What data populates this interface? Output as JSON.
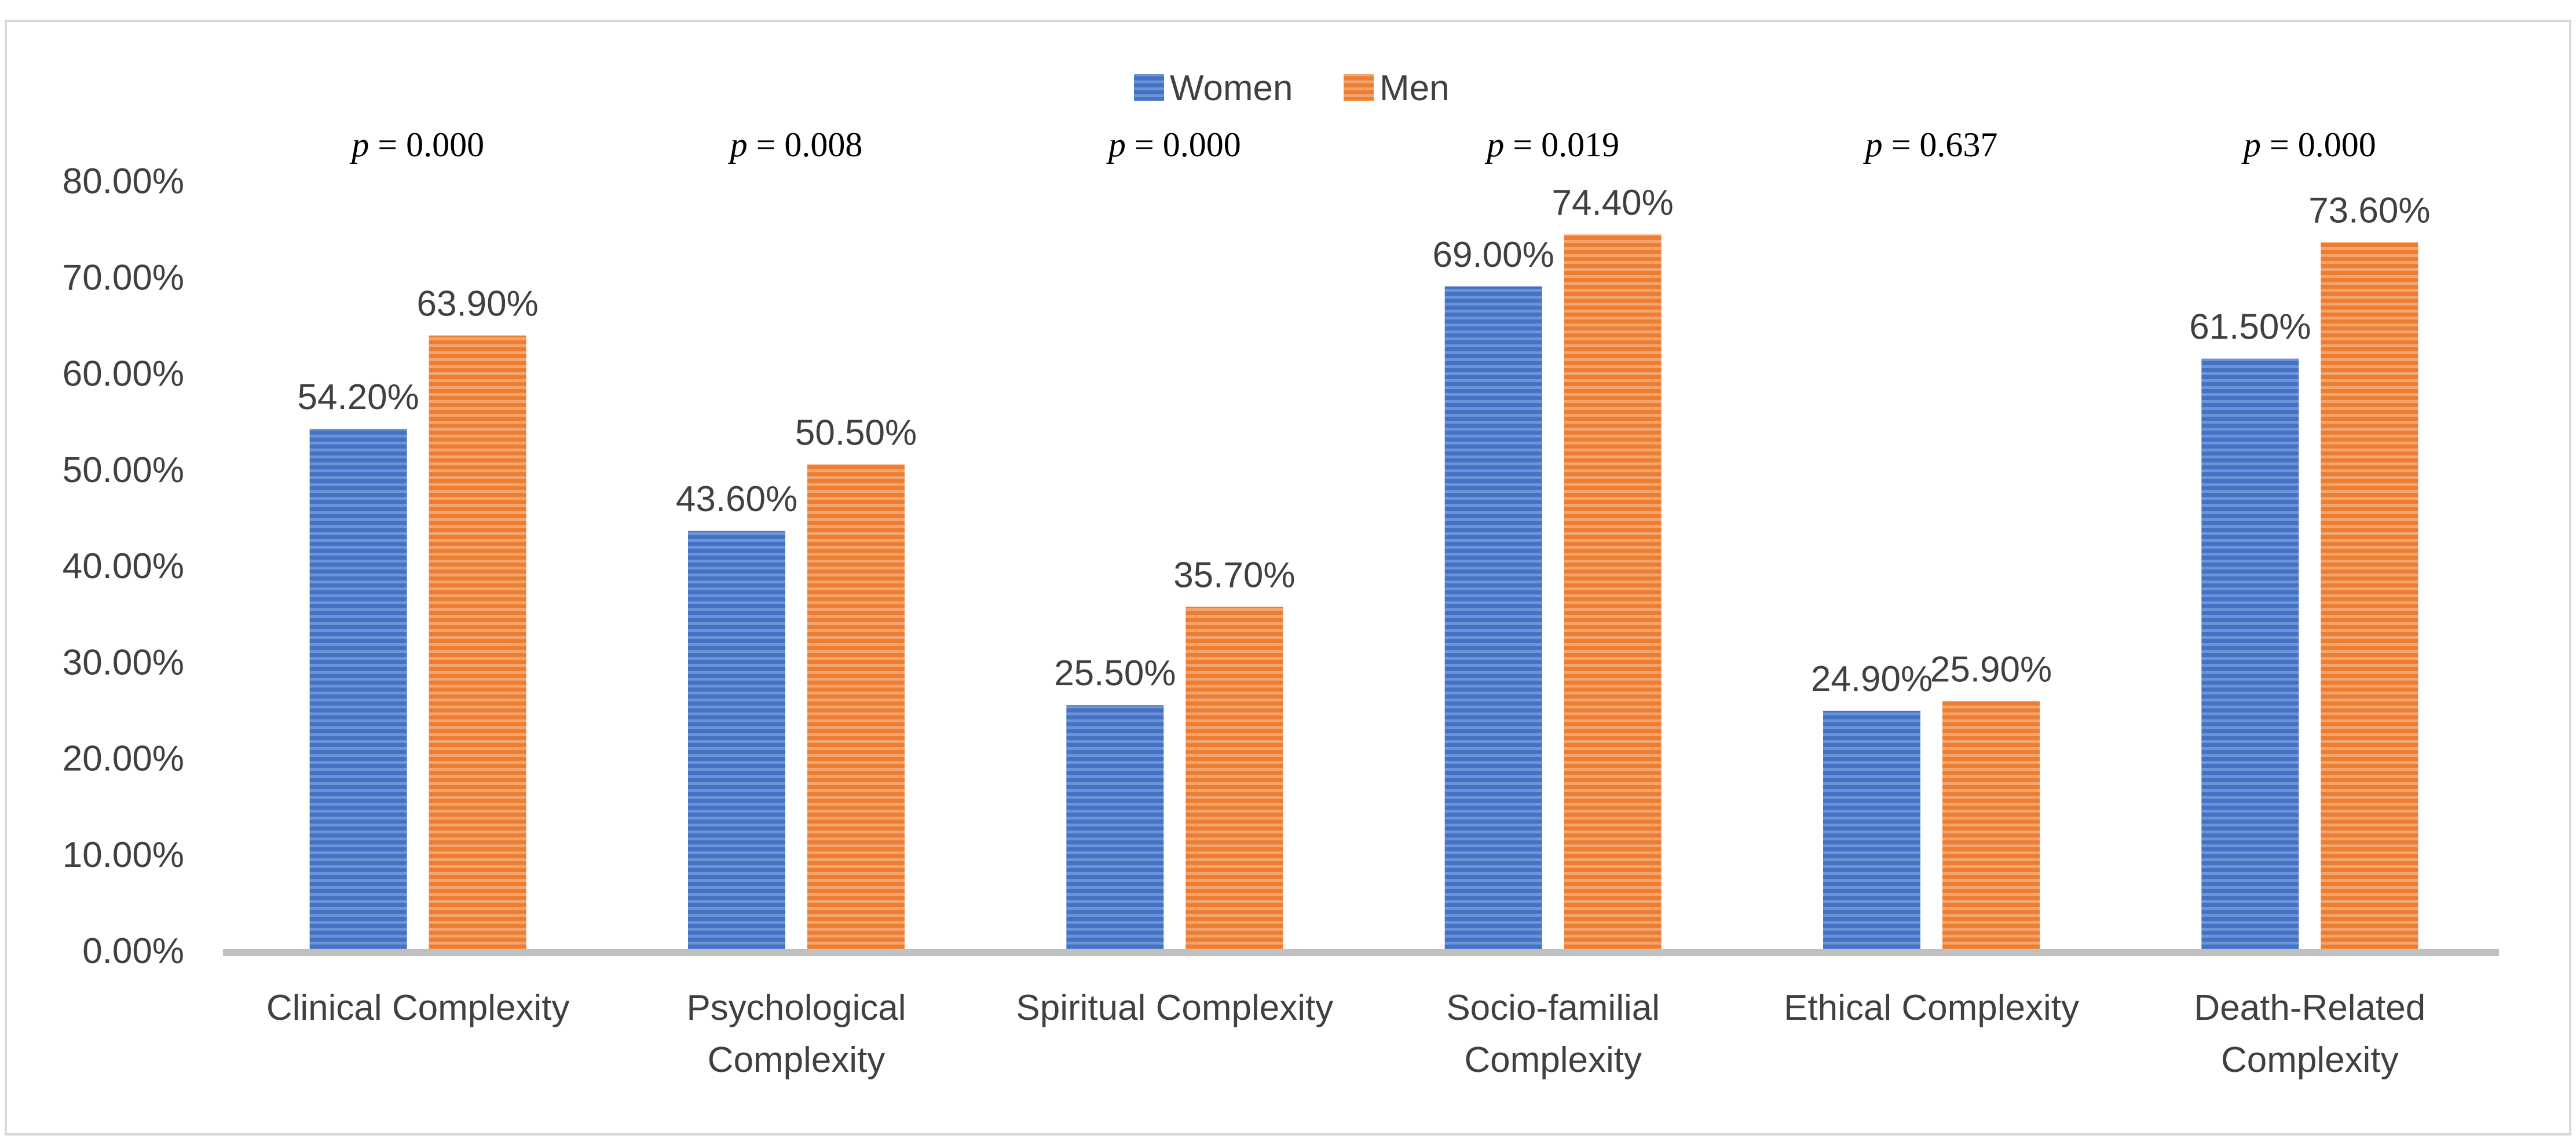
{
  "chart_data": {
    "type": "bar",
    "categories": [
      [
        "Clinical Complexity"
      ],
      [
        "Psychological",
        "Complexity"
      ],
      [
        "Spiritual Complexity"
      ],
      [
        "Socio-familial",
        "Complexity"
      ],
      [
        "Ethical Complexity"
      ],
      [
        "Death-Related",
        "Complexity"
      ]
    ],
    "series": [
      {
        "name": "Women",
        "values": [
          54.2,
          43.6,
          25.5,
          69.0,
          24.9,
          61.5
        ],
        "labels": [
          "54.20%",
          "43.60%",
          "25.50%",
          "69.00%",
          "24.90%",
          "61.50%"
        ]
      },
      {
        "name": "Men",
        "values": [
          63.9,
          50.5,
          35.7,
          74.4,
          25.9,
          73.6
        ],
        "labels": [
          "63.90%",
          "50.50%",
          "35.70%",
          "74.40%",
          "25.90%",
          "73.60%"
        ]
      }
    ],
    "p_values": [
      "0.000",
      "0.008",
      "0.000",
      "0.019",
      "0.637",
      "0.000"
    ],
    "p_prefix": "p",
    "ylim": [
      0,
      80
    ],
    "yticks": [
      "0.00%",
      "10.00%",
      "20.00%",
      "30.00%",
      "40.00%",
      "50.00%",
      "60.00%",
      "70.00%",
      "80.00%"
    ],
    "legend_position": "top-center",
    "grid": false,
    "colors": {
      "Women": "#4472C4",
      "Men": "#ED7D31",
      "axis": "#BFBFBF"
    }
  }
}
